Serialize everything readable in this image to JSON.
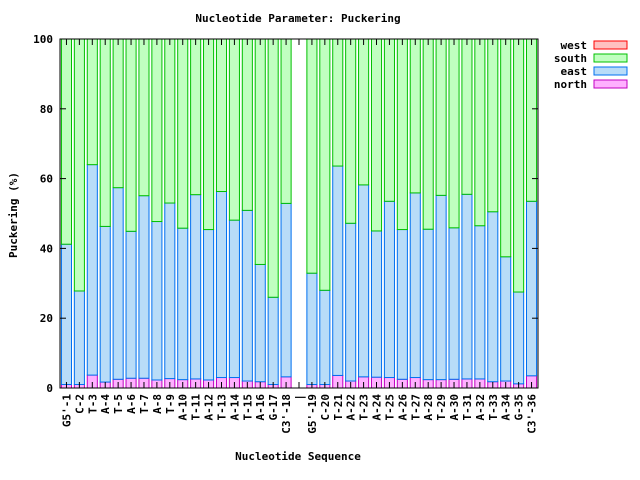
{
  "chart_data": {
    "type": "bar",
    "stacked": true,
    "title": "Nucleotide Parameter: Puckering",
    "xlabel": "Nucleotide Sequence",
    "ylabel": "Puckering (%)",
    "ylim": [
      0,
      100
    ],
    "yticks": [
      0,
      20,
      40,
      60,
      80,
      100
    ],
    "grid": false,
    "legend_position": "outside-right",
    "categories": [
      "G5'-1",
      "C-2",
      "T-3",
      "A-4",
      "T-5",
      "A-6",
      "T-7",
      "A-8",
      "T-9",
      "A-10",
      "T-11",
      "A-12",
      "T-13",
      "A-14",
      "T-15",
      "A-16",
      "G-17",
      "C3'-18",
      "|",
      "G5'-19",
      "C-20",
      "T-21",
      "A-22",
      "T-23",
      "A-24",
      "T-25",
      "A-26",
      "T-27",
      "A-28",
      "T-29",
      "A-30",
      "T-31",
      "A-32",
      "T-33",
      "A-34",
      "G-35",
      "C3'-36"
    ],
    "series": [
      {
        "name": "north",
        "values": [
          1,
          1,
          3.7,
          1.7,
          2.5,
          2.8,
          2.8,
          2.3,
          2.7,
          2.4,
          2.6,
          2.3,
          3,
          3,
          2,
          1.8,
          1,
          3.2,
          null,
          1,
          1,
          3.6,
          2,
          3.2,
          3.1,
          3,
          2.5,
          3,
          2.4,
          2.4,
          2.5,
          2.6,
          2.6,
          1.8,
          2,
          1.2,
          3.5
        ]
      },
      {
        "name": "east",
        "values": [
          40.2,
          26.8,
          60.3,
          44.6,
          54.9,
          42.1,
          52.3,
          45.4,
          50.3,
          43.4,
          52.8,
          43.1,
          53.3,
          45.1,
          48.9,
          33.6,
          25,
          49.7,
          null,
          31.9,
          27,
          60,
          45.2,
          55,
          41.9,
          50.5,
          42.9,
          52.9,
          43.1,
          52.8,
          43.4,
          52.9,
          43.9,
          48.7,
          35.6,
          26.3,
          50
        ]
      },
      {
        "name": "south",
        "values": [
          58.8,
          72.2,
          36,
          53.7,
          42.6,
          55.1,
          44.9,
          52.3,
          47,
          54.2,
          44.6,
          54.6,
          43.7,
          51.9,
          49.1,
          64.6,
          74,
          47.1,
          null,
          67.1,
          72,
          36.4,
          52.8,
          41.8,
          55,
          46.5,
          54.6,
          44.1,
          54.5,
          44.8,
          54.1,
          44.5,
          53.5,
          49.5,
          62.4,
          72.5,
          46.5
        ]
      },
      {
        "name": "west",
        "values": [
          0,
          0,
          0,
          0,
          0,
          0,
          0,
          0,
          0,
          0,
          0,
          0,
          0,
          0,
          0,
          0,
          0,
          0,
          null,
          0,
          0,
          0,
          0,
          0,
          0,
          0,
          0,
          0,
          0,
          0,
          0,
          0,
          0,
          0,
          0,
          0,
          0
        ]
      }
    ],
    "colors": {
      "west": {
        "fill": "#ffc0c0",
        "stroke": "#ff0000"
      },
      "south": {
        "fill": "#c0ffc0",
        "stroke": "#00c000"
      },
      "east": {
        "fill": "#b8dcf8",
        "stroke": "#0070f0"
      },
      "north": {
        "fill": "#ffb0ff",
        "stroke": "#c000c0"
      }
    },
    "legend_order": [
      "west",
      "south",
      "east",
      "north"
    ]
  }
}
